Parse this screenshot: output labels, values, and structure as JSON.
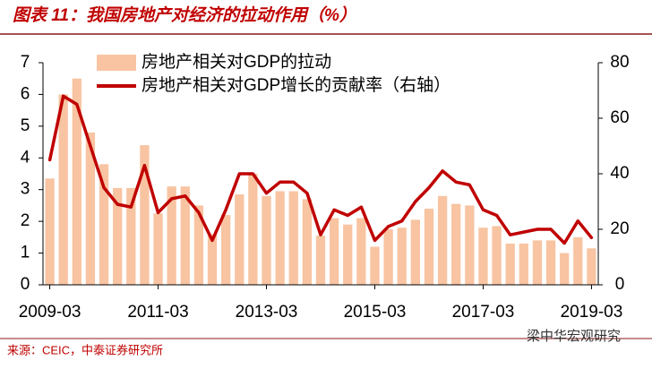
{
  "title": "图表 11：我国房地产对经济的拉动作用（%）",
  "source": "来源：CEIC，中泰证券研究所",
  "watermark": "梁中华宏观研究",
  "chart_data": {
    "type": "bar_line",
    "categories": [
      "2009-03",
      null,
      null,
      null,
      null,
      null,
      null,
      null,
      "2011-03",
      null,
      null,
      null,
      null,
      null,
      null,
      null,
      "2013-03",
      null,
      null,
      null,
      null,
      null,
      null,
      null,
      "2015-03",
      null,
      null,
      null,
      null,
      null,
      null,
      null,
      "2017-03",
      null,
      null,
      null,
      null,
      null,
      null,
      null,
      "2019-03"
    ],
    "series": [
      {
        "name": "房地产相关对GDP的拉动",
        "type": "bar",
        "color": "#f8c4a2",
        "values": [
          3.35,
          6.0,
          6.5,
          4.8,
          3.8,
          3.05,
          3.05,
          4.4,
          2.25,
          3.1,
          3.1,
          2.5,
          1.6,
          2.2,
          2.85,
          3.5,
          2.8,
          2.95,
          2.95,
          2.7,
          1.55,
          2.1,
          1.9,
          2.1,
          1.2,
          1.75,
          1.8,
          2.05,
          2.4,
          2.8,
          2.55,
          2.5,
          1.8,
          1.85,
          1.3,
          1.3,
          1.4,
          1.4,
          1.0,
          1.5,
          1.15
        ]
      },
      {
        "name": "房地产相关对GDP增长的贡献率（右轴）",
        "type": "line",
        "axis": "y2",
        "color": "#c00000",
        "values": [
          45,
          68,
          65,
          50,
          35,
          29,
          28,
          43,
          26,
          31,
          32,
          26,
          16,
          27,
          40,
          40,
          33,
          37,
          37,
          33,
          18,
          27,
          25,
          28,
          16,
          21,
          23,
          30,
          35,
          41,
          37,
          36,
          27,
          25,
          18,
          19,
          20,
          20,
          15,
          23,
          17
        ]
      }
    ],
    "ylim": [
      0,
      7
    ],
    "yticks": [
      0,
      1,
      2,
      3,
      4,
      5,
      6,
      7
    ],
    "y2lim": [
      0,
      80
    ],
    "y2ticks": [
      0,
      20,
      40,
      60,
      80
    ],
    "legend": "top"
  }
}
